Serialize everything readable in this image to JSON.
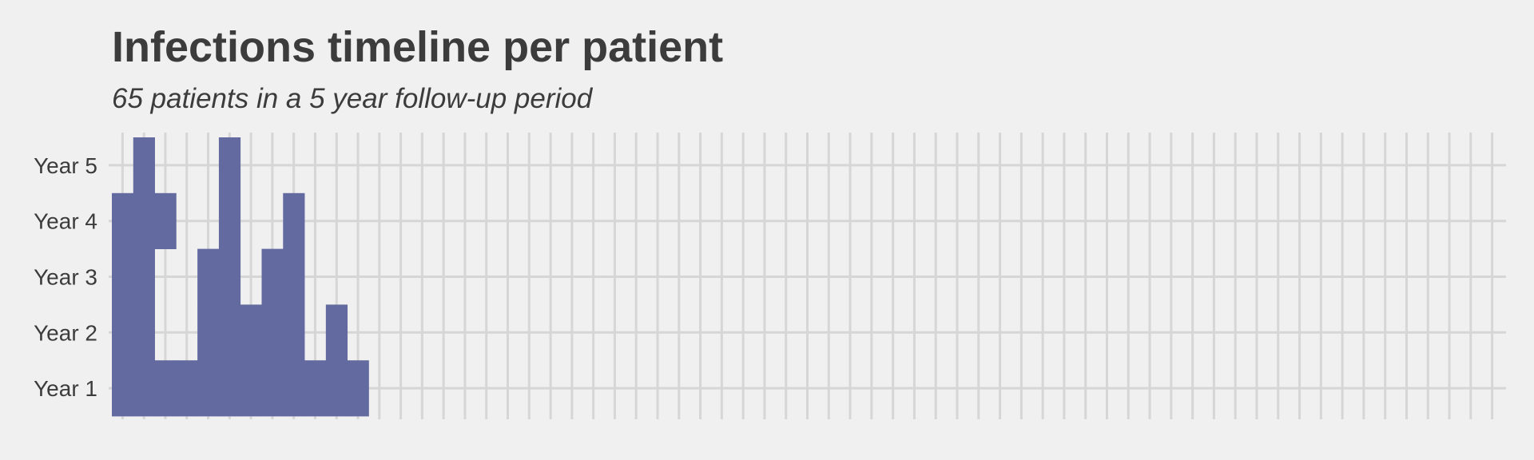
{
  "chart_data": {
    "type": "heatmap",
    "title": "Infections timeline per patient",
    "subtitle": "65 patients in a 5 year follow-up period",
    "xlabel": "",
    "ylabel": "",
    "y_categories": [
      "Year 1",
      "Year 2",
      "Year 3",
      "Year 4",
      "Year 5"
    ],
    "patients_count": 65,
    "grid": true,
    "fill_color": "#636aa0",
    "background_color": "#f0f0f0",
    "grid_color": "#d6d6d6",
    "text_color": "#3c3c3c",
    "infections": [
      [
        1,
        2,
        3,
        4
      ],
      [
        1,
        2,
        3,
        4,
        5
      ],
      [
        1,
        4
      ],
      [
        1
      ],
      [
        1,
        2,
        3
      ],
      [
        1,
        2,
        3,
        4,
        5
      ],
      [
        1,
        2
      ],
      [
        1,
        2,
        3
      ],
      [
        1,
        2,
        3,
        4
      ],
      [
        1
      ],
      [
        1,
        2
      ],
      [
        1
      ],
      [],
      [],
      [],
      [],
      [],
      [],
      [],
      [],
      [],
      [],
      [],
      [],
      [],
      [],
      [],
      [],
      [],
      [],
      [],
      [],
      [],
      [],
      [],
      [],
      [],
      [],
      [],
      [],
      [],
      [],
      [],
      [],
      [],
      [],
      [],
      [],
      [],
      [],
      [],
      [],
      [],
      [],
      [],
      [],
      [],
      [],
      [],
      [],
      [],
      [],
      [],
      [],
      []
    ]
  }
}
